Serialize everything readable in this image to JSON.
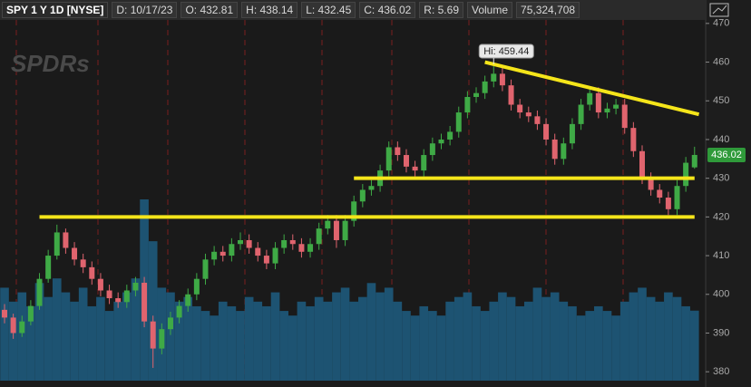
{
  "chart_data": {
    "type": "candlestick",
    "symbol": "SPY 1 Y 1D [NYSE]",
    "info": [
      "D: 10/17/23",
      "O: 432.81",
      "H: 438.14",
      "L: 432.45",
      "C: 436.02",
      "R: 5.69"
    ],
    "volume_label": "Volume",
    "volume_text": "75,324,708",
    "watermark": "SPDRs",
    "high_label": "Hi: 459.44",
    "high_index": 56,
    "last_label": "436.02",
    "ylim": [
      377.7,
      470.9
    ],
    "yticks": [
      380,
      390,
      400,
      410,
      420,
      430,
      440,
      450,
      460,
      470
    ],
    "up_color": "#3faa46",
    "down_color": "#e0646e",
    "volume_color": "#1d5372",
    "line_color": "#f5e51a",
    "open": [
      396,
      394,
      390,
      393,
      397,
      404,
      410,
      416,
      412,
      409,
      407,
      404,
      401,
      399,
      398,
      401,
      403,
      393,
      386,
      391,
      394,
      397,
      400,
      404,
      409,
      411,
      410,
      413,
      414,
      412,
      410,
      408,
      412,
      414,
      413,
      411,
      413,
      417,
      419,
      414,
      419,
      424,
      427,
      428,
      432,
      438,
      436,
      433,
      432,
      436,
      439,
      440,
      442,
      447,
      451,
      452,
      455,
      457,
      454,
      449,
      447,
      446,
      444,
      440,
      435,
      439,
      444,
      449,
      452,
      447,
      448,
      449,
      443,
      437,
      430,
      427,
      425,
      422,
      428,
      432.81
    ],
    "high": [
      397.5,
      395,
      394.5,
      398.5,
      405.5,
      411.5,
      418,
      417,
      413.5,
      410.5,
      408.5,
      405.5,
      402.5,
      400.5,
      402.5,
      404.5,
      404.5,
      394.5,
      392.5,
      395.5,
      398.5,
      401.5,
      405.5,
      410.5,
      412.5,
      412.5,
      414.5,
      416,
      415.5,
      413.5,
      411.5,
      413.5,
      415.5,
      415.5,
      414.5,
      414.5,
      418.5,
      420.5,
      420.5,
      420.5,
      425.5,
      428.5,
      429.5,
      433.5,
      439.5,
      439.5,
      437.5,
      434.5,
      437.5,
      440.5,
      441.5,
      443.5,
      448.5,
      452.5,
      453.5,
      456.5,
      459.44,
      458.5,
      455.5,
      450.5,
      448.5,
      447.5,
      445.5,
      441.5,
      440.5,
      445.5,
      450.5,
      453.5,
      453.5,
      449.5,
      450.5,
      450.5,
      444.5,
      438.5,
      431.5,
      428.5,
      426.5,
      429.5,
      435.5,
      438.14
    ],
    "low": [
      392.5,
      388.5,
      389,
      392,
      396,
      403,
      409,
      410.5,
      407.5,
      405.5,
      402.5,
      399.5,
      397.5,
      396.5,
      396.5,
      399.5,
      391.5,
      381,
      384.5,
      389.5,
      392.5,
      395.5,
      398.5,
      402.5,
      407.5,
      408.5,
      408.5,
      411.5,
      410.5,
      408.5,
      406.5,
      406.5,
      410.5,
      411.5,
      409.5,
      409.5,
      411.5,
      415.5,
      412,
      412.5,
      417.5,
      422.5,
      425.5,
      426.5,
      430.5,
      434.5,
      431.5,
      430.5,
      430.5,
      434.5,
      437.5,
      438.5,
      440.5,
      445.5,
      449.5,
      450.5,
      453.5,
      452.5,
      447.5,
      445.5,
      444.5,
      442.5,
      438.5,
      433.5,
      433.5,
      437.5,
      442.5,
      447.5,
      445.5,
      445.5,
      446.5,
      441.5,
      435.5,
      428.5,
      425.5,
      423.5,
      420.5,
      420.5,
      426.5,
      432.45
    ],
    "close": [
      394,
      390,
      393,
      397,
      404,
      410,
      416,
      412,
      409,
      407,
      404,
      401,
      399,
      398,
      401,
      403,
      393,
      386,
      391,
      394,
      397,
      400,
      404,
      409,
      411,
      410,
      413,
      414,
      412,
      410,
      408,
      412,
      414,
      413,
      411,
      413,
      417,
      419,
      414,
      419,
      424,
      427,
      428,
      432,
      438,
      436,
      433,
      432,
      436,
      439,
      440,
      442,
      447,
      451,
      452,
      455,
      457,
      454,
      449,
      447,
      446,
      444,
      440,
      435,
      439,
      444,
      449,
      452,
      447,
      448,
      449,
      443,
      437,
      430,
      427,
      425,
      422,
      428,
      434,
      436.02
    ],
    "volume": [
      100000000,
      85000000,
      95000000,
      80000000,
      105000000,
      90000000,
      110000000,
      95000000,
      85000000,
      100000000,
      80000000,
      90000000,
      75000000,
      85000000,
      95000000,
      110000000,
      195000000,
      150000000,
      100000000,
      95000000,
      85000000,
      90000000,
      80000000,
      75000000,
      70000000,
      85000000,
      80000000,
      75000000,
      90000000,
      85000000,
      80000000,
      95000000,
      75000000,
      70000000,
      85000000,
      80000000,
      90000000,
      85000000,
      95000000,
      100000000,
      85000000,
      90000000,
      105000000,
      95000000,
      100000000,
      85000000,
      75000000,
      70000000,
      80000000,
      75000000,
      70000000,
      85000000,
      90000000,
      95000000,
      80000000,
      75000000,
      85000000,
      95000000,
      90000000,
      80000000,
      85000000,
      100000000,
      90000000,
      95000000,
      85000000,
      80000000,
      70000000,
      75000000,
      80000000,
      75000000,
      70000000,
      85000000,
      95000000,
      100000000,
      90000000,
      85000000,
      95000000,
      90000000,
      80000000,
      75324708
    ],
    "trendlines": [
      {
        "x": [
          4,
          79
        ],
        "y": [
          420,
          420
        ]
      },
      {
        "x": [
          40,
          79
        ],
        "y": [
          430,
          430
        ]
      },
      {
        "x": [
          55,
          79.5
        ],
        "y": [
          460,
          446.5
        ]
      }
    ]
  }
}
